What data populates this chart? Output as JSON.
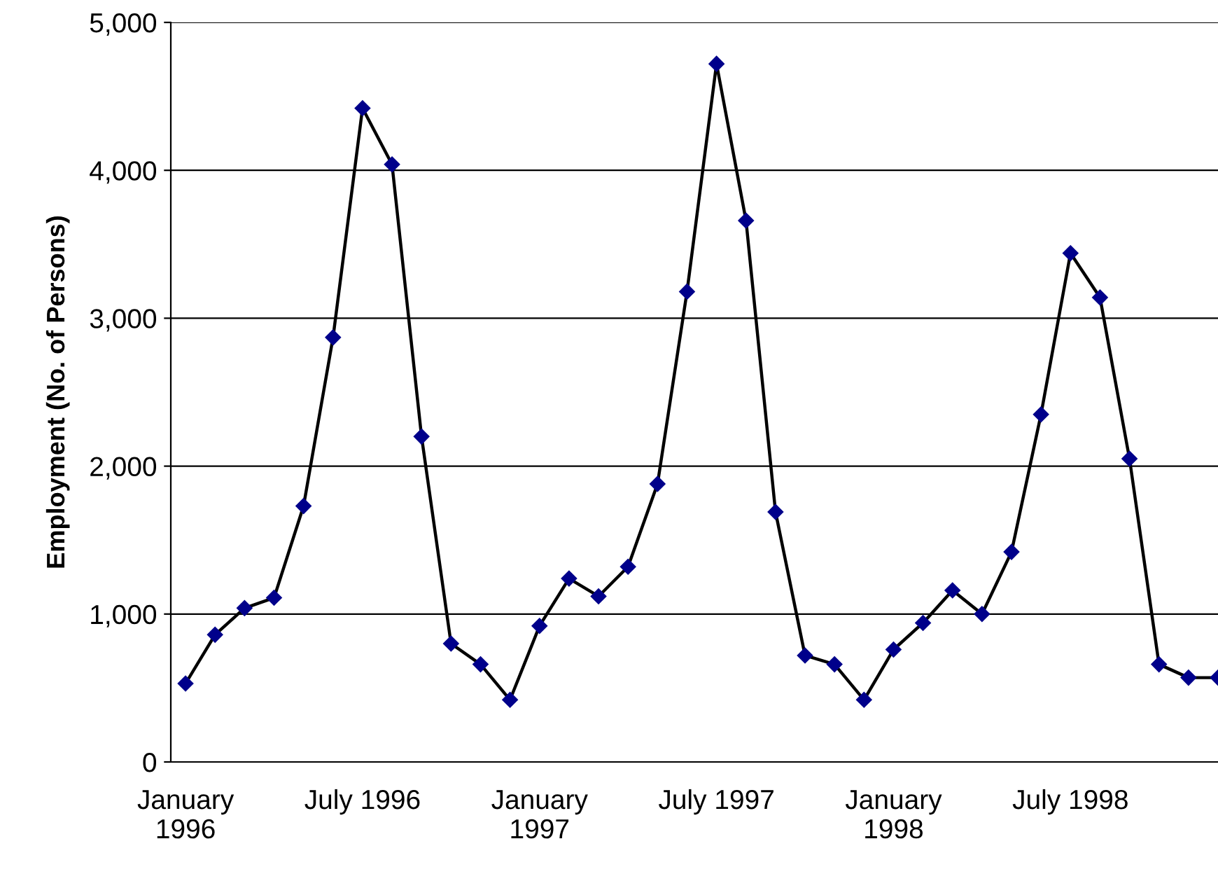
{
  "chart_data": {
    "type": "line",
    "ylabel": "Employment (No. of Persons)",
    "categories": [
      "January\n1996",
      null,
      null,
      null,
      null,
      null,
      "July 1996",
      null,
      null,
      null,
      null,
      null,
      "January\n1997",
      null,
      null,
      null,
      null,
      null,
      "July 1997",
      null,
      null,
      null,
      null,
      null,
      "January\n1998",
      null,
      null,
      null,
      null,
      null,
      "July 1998",
      null,
      null,
      null,
      null,
      null
    ],
    "series": [
      {
        "color": "#00008b",
        "values": [
          530,
          860,
          1040,
          1110,
          1730,
          2870,
          4420,
          4040,
          2200,
          800,
          660,
          420,
          920,
          1240,
          1120,
          1320,
          1880,
          3180,
          4720,
          3660,
          1690,
          720,
          660,
          420,
          760,
          940,
          1160,
          1000,
          1420,
          2350,
          3440,
          3140,
          2050,
          660,
          570,
          570
        ]
      }
    ],
    "ylim": [
      0,
      5000
    ],
    "yticks": [
      {
        "value": 0,
        "label": "0"
      },
      {
        "value": 1000,
        "label": "1,000"
      },
      {
        "value": 2000,
        "label": "2,000"
      },
      {
        "value": 3000,
        "label": "3,000"
      },
      {
        "value": 4000,
        "label": "4,000"
      },
      {
        "value": 5000,
        "label": "5,000"
      }
    ],
    "grid": "y",
    "marker": "diamond",
    "line_style": "solid",
    "legend": false
  }
}
